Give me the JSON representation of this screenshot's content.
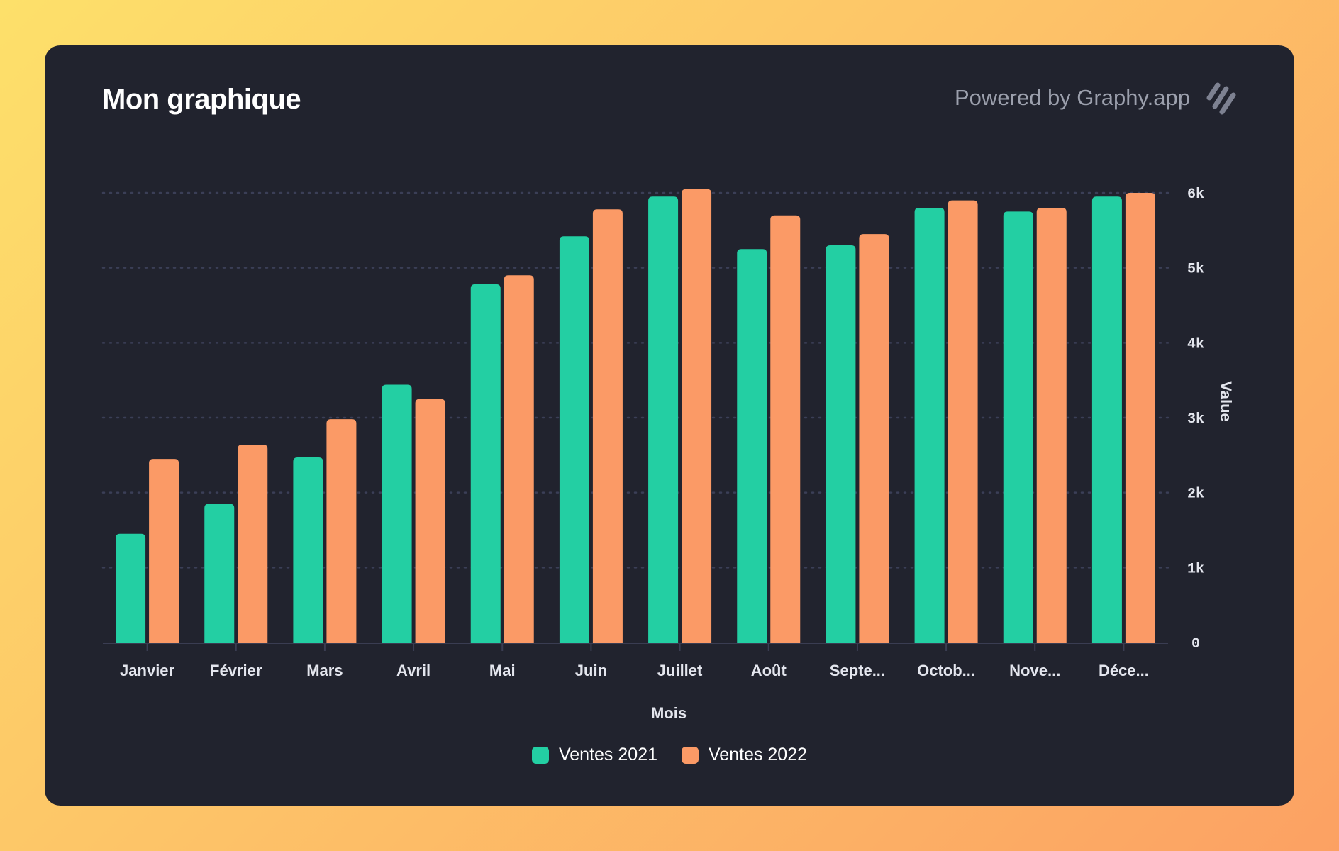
{
  "header": {
    "title": "Mon graphique",
    "powered_by": "Powered by Graphy.app",
    "logo_icon": "graphy-slashes-logo"
  },
  "colors": {
    "background": "#21232e",
    "series_2021": "#23cfa3",
    "series_2022": "#fb9a66",
    "grid": "#3b3f57",
    "axis_text": "#e4e6ee"
  },
  "chart_data": {
    "type": "bar",
    "title": "Mon graphique",
    "xlabel": "Mois",
    "ylabel": "Value",
    "categories": [
      "Janvier",
      "Février",
      "Mars",
      "Avril",
      "Mai",
      "Juin",
      "Juillet",
      "Août",
      "Septe...",
      "Octob...",
      "Nove...",
      "Déce..."
    ],
    "series": [
      {
        "name": "Ventes 2021",
        "color": "#23cfa3",
        "values": [
          1450,
          1850,
          2470,
          3440,
          4780,
          5420,
          5950,
          5250,
          5300,
          5800,
          5750,
          5950
        ]
      },
      {
        "name": "Ventes 2022",
        "color": "#fb9a66",
        "values": [
          2450,
          2640,
          2980,
          3250,
          4900,
          5780,
          6050,
          5700,
          5450,
          5900,
          5800,
          6000
        ]
      }
    ],
    "ylim": [
      0,
      6000
    ],
    "yticks": [
      0,
      1000,
      2000,
      3000,
      4000,
      5000,
      6000
    ],
    "ytick_labels": [
      "0",
      "1k",
      "2k",
      "3k",
      "4k",
      "5k",
      "6k"
    ],
    "y_axis_side": "right",
    "grid": "horizontal dotted",
    "legend_position": "bottom-center"
  }
}
